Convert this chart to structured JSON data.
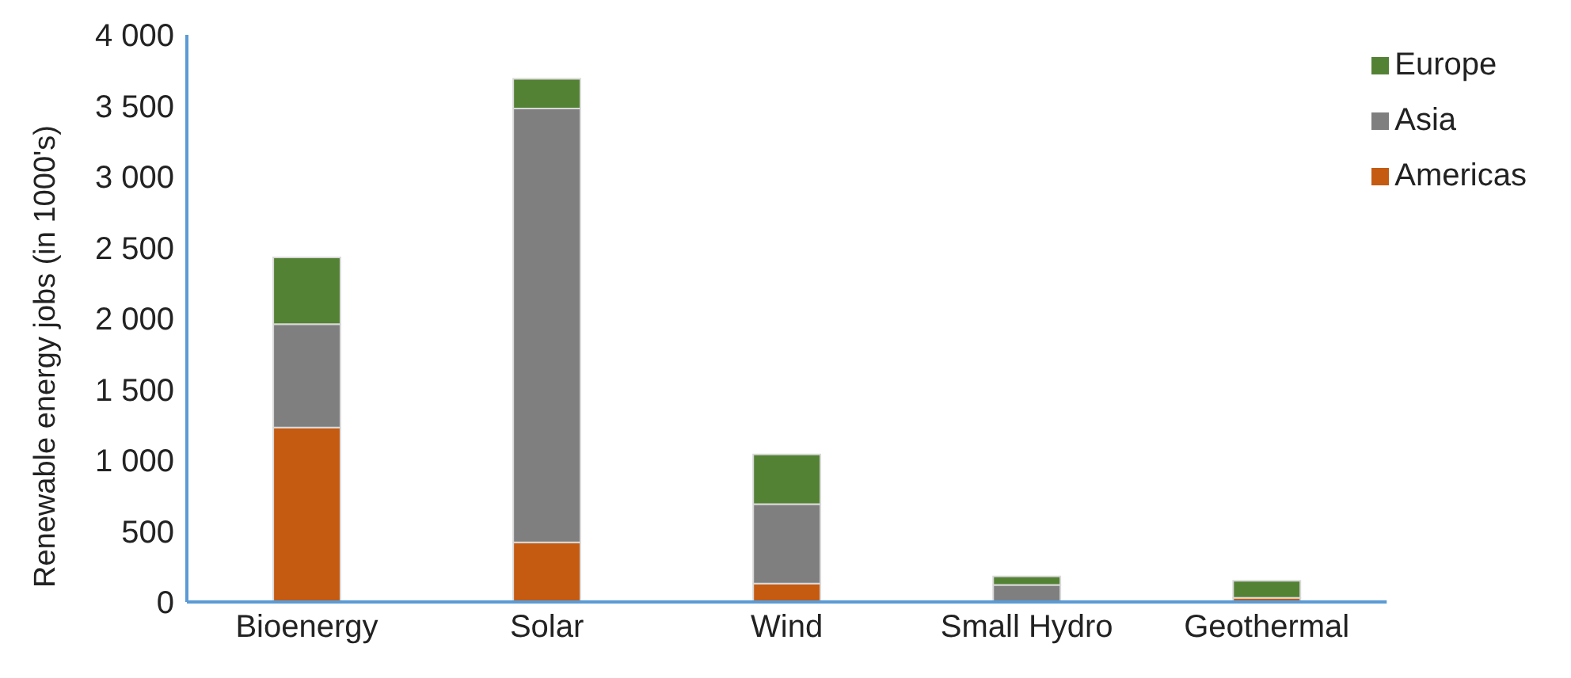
{
  "chart_data": {
    "type": "bar",
    "stacked": true,
    "ylabel": "Renewable energy jobs (in 1000's)",
    "categories": [
      "Bioenergy",
      "Solar",
      "Wind",
      "Small Hydro",
      "Geothermal"
    ],
    "series": [
      {
        "name": "Americas",
        "color": "#c55a11",
        "values": [
          1230,
          420,
          130,
          null,
          30
        ]
      },
      {
        "name": "Asia",
        "color": "#7f7f7f",
        "values": [
          730,
          3060,
          560,
          120,
          null
        ]
      },
      {
        "name": "Europe",
        "color": "#548235",
        "values": [
          470,
          210,
          350,
          60,
          120
        ]
      }
    ],
    "ylim": [
      0,
      4000
    ],
    "yticks": [
      {
        "value": 0,
        "label": "0"
      },
      {
        "value": 500,
        "label": "500"
      },
      {
        "value": 1000,
        "label": "1 000"
      },
      {
        "value": 1500,
        "label": "1 500"
      },
      {
        "value": 2000,
        "label": "2 000"
      },
      {
        "value": 2500,
        "label": "2 500"
      },
      {
        "value": 3000,
        "label": "3 000"
      },
      {
        "value": 3500,
        "label": "3 500"
      },
      {
        "value": 4000,
        "label": "4 000"
      }
    ],
    "grid": false,
    "legend": "top right"
  }
}
